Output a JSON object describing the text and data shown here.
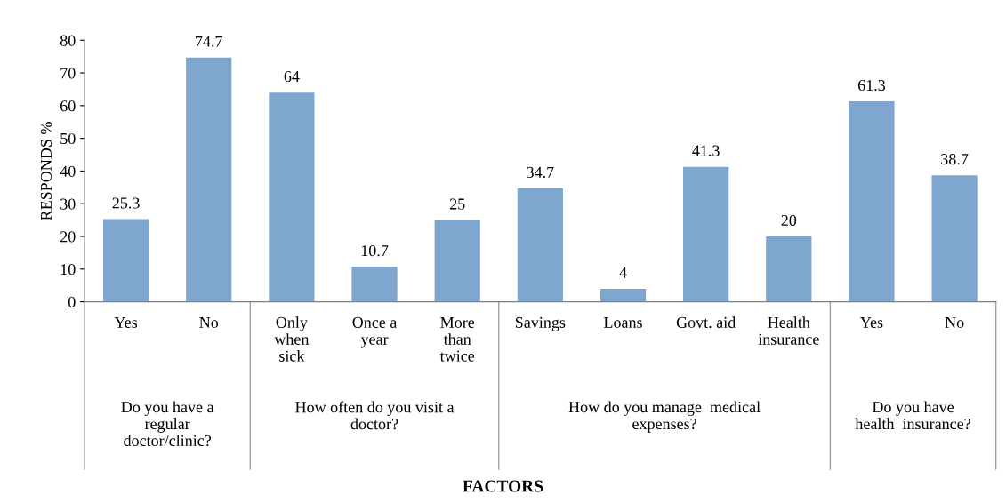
{
  "chart_data": [
    {
      "type": "bar",
      "categories": [
        "Yes",
        "No"
      ],
      "values": [
        25.3,
        74.7
      ],
      "color": "#7ea6cf",
      "ylim": [
        0,
        80
      ],
      "yticks": [
        0,
        10,
        20,
        30,
        40,
        50,
        60,
        70,
        80
      ],
      "ylabel": "RESPONDS %",
      "xlabel": "Do you have a\nregular\ndoctor/clinic?",
      "data_labels": true
    },
    {
      "type": "bar",
      "categories": [
        "Only\nwhen\nsick",
        "Once a\nyear",
        "More\nthan\ntwice"
      ],
      "values": [
        64,
        10.7,
        25
      ],
      "color": "#7ea6cf",
      "ylim": [
        0,
        80
      ],
      "tick_labels": "x",
      "xlabel": "How often do you visit a\ndoctor?",
      "data_labels": true
    },
    {
      "type": "bar",
      "categories": [
        "Savings",
        "Loans",
        "Govt. aid",
        "Health\ninsurance"
      ],
      "values": [
        34.7,
        4,
        41.3,
        20
      ],
      "color": "#7ea6cf",
      "ylim": [
        0,
        80
      ],
      "tick_labels": "x",
      "xlabel": "How do you manage  medical\nexpenses?",
      "data_labels": true
    },
    {
      "type": "bar",
      "categories": [
        "Yes",
        "No"
      ],
      "values": [
        61.3,
        38.7
      ],
      "color": "#7ea6cf",
      "ylim": [
        0,
        80
      ],
      "tick_labels": "x",
      "xlabel": "Do you have\nhealth  insurance?",
      "data_labels": true,
      "annotations": [
        "FACTORS"
      ]
    }
  ]
}
